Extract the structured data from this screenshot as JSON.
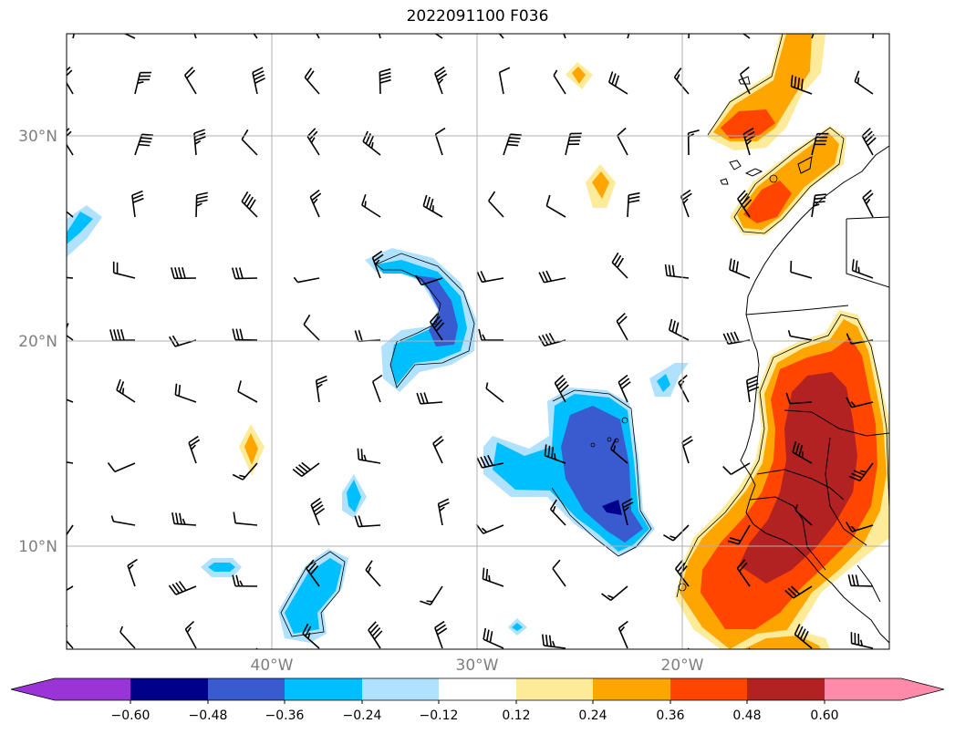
{
  "title": "2022091100 F036",
  "map": {
    "lat_labels": [
      "30°N",
      "20°N",
      "10°N"
    ],
    "lon_labels": [
      "40°W",
      "30°W",
      "20°W"
    ],
    "gridline_color": "#b0b0b0",
    "label_color": "#7f7f7f"
  },
  "colorbar": {
    "ticks": [
      "−0.60",
      "−0.48",
      "−0.36",
      "−0.24",
      "−0.12",
      "0.12",
      "0.24",
      "0.36",
      "0.48",
      "0.60"
    ],
    "colors": [
      "#9b34d6",
      "#00008b",
      "#3a5bcf",
      "#00bfff",
      "#b0e2ff",
      "#ffffff",
      "#fdeb9a",
      "#ffa500",
      "#ff4500",
      "#b22222",
      "#ff8aaa"
    ]
  },
  "shading_colors": {
    "neg_012": "#b0e2ff",
    "neg_024": "#00bfff",
    "neg_036": "#3a5bcf",
    "neg_048": "#00008b",
    "pos_012": "#fdeb9a",
    "pos_024": "#ffa500",
    "pos_036": "#ff4500",
    "pos_048": "#b22222"
  }
}
